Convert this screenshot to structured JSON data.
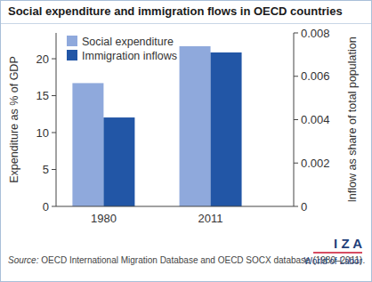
{
  "chart_data": {
    "type": "bar",
    "title": "Social expenditure and immigration flows in OECD countries",
    "categories": [
      "1980",
      "2011"
    ],
    "series": [
      {
        "name": "Social expenditure",
        "color": "#8fa9dc",
        "values": [
          16.7,
          21.7
        ]
      },
      {
        "name": "Immigration inflows",
        "color": "#2256a6",
        "values": [
          0.0041,
          0.0071
        ],
        "axis": "y2"
      }
    ],
    "y_label": "Expenditure as % of GDP",
    "y2_label": "Inflow as share of total population",
    "ylim": [
      0,
      23.5
    ],
    "yticks": [
      0,
      5,
      10,
      15,
      20
    ],
    "y2lim": [
      0,
      0.008
    ],
    "y2ticks": [
      0,
      0.002,
      0.004,
      0.006,
      0.008
    ],
    "legend": "upper-left",
    "grid": false,
    "source": "Source: OECD International Migration Database and OECD SOCX database (1980–2011).",
    "annotations": [
      "I Z A",
      "World of Labor"
    ]
  }
}
